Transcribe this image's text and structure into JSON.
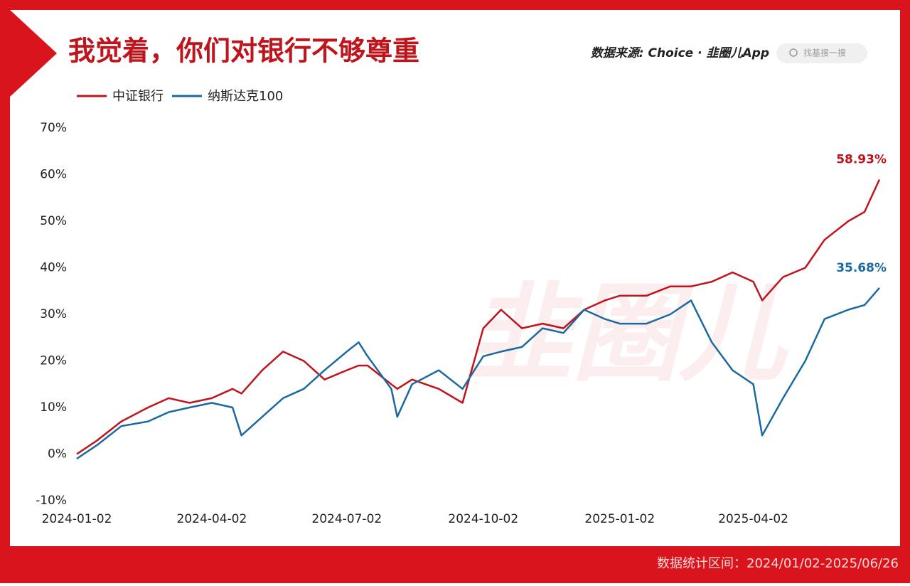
{
  "chart_data": {
    "type": "line",
    "title": "我觉着，你们对银行不够尊重",
    "source": "数据来源: Choice · 韭圈儿App",
    "search": "找基搜一搜",
    "watermark": "韭圈儿",
    "footer": "数据统计区间：2024/01/02-2025/06/26",
    "x": [
      "2024-01-02",
      "2024-01-16",
      "2024-02-01",
      "2024-02-19",
      "2024-03-04",
      "2024-03-18",
      "2024-04-02",
      "2024-04-16",
      "2024-04-22",
      "2024-05-06",
      "2024-05-20",
      "2024-06-03",
      "2024-06-17",
      "2024-07-02",
      "2024-07-10",
      "2024-07-16",
      "2024-08-01",
      "2024-08-05",
      "2024-08-15",
      "2024-09-02",
      "2024-09-18",
      "2024-10-02",
      "2024-10-14",
      "2024-10-28",
      "2024-11-11",
      "2024-11-25",
      "2024-12-09",
      "2024-12-23",
      "2025-01-02",
      "2025-01-20",
      "2025-02-05",
      "2025-02-19",
      "2025-03-05",
      "2025-03-19",
      "2025-04-02",
      "2025-04-08",
      "2025-04-22",
      "2025-05-07",
      "2025-05-20",
      "2025-06-05",
      "2025-06-16",
      "2025-06-26"
    ],
    "series": [
      {
        "name": "中证银行",
        "color": "#c0141c",
        "values": [
          0,
          3,
          7,
          10,
          12,
          11,
          12,
          14,
          13,
          18,
          22,
          20,
          16,
          18,
          19,
          19,
          15,
          14,
          16,
          14,
          11,
          27,
          31,
          27,
          28,
          27,
          31,
          33,
          34,
          34,
          36,
          36,
          37,
          39,
          37,
          33,
          38,
          40,
          46,
          50,
          52,
          58.93
        ],
        "value_labels": [
          null,
          null,
          null,
          null,
          null,
          null,
          null,
          null,
          null,
          null,
          null,
          null,
          null,
          null,
          null,
          null,
          null,
          null,
          null,
          null,
          null,
          null,
          null,
          null,
          null,
          null,
          null,
          null,
          null,
          null,
          null,
          null,
          null,
          null,
          null,
          null,
          null,
          null,
          null,
          null,
          null,
          "58.93%"
        ]
      },
      {
        "name": "纳斯达克100",
        "color": "#1a6aa0",
        "values": [
          -1,
          2,
          6,
          7,
          9,
          10,
          11,
          10,
          4,
          8,
          12,
          14,
          18,
          22,
          24,
          21,
          14,
          8,
          15,
          18,
          14,
          21,
          22,
          23,
          27,
          26,
          31,
          29,
          28,
          28,
          30,
          33,
          24,
          18,
          15,
          4,
          12,
          20,
          29,
          31,
          32,
          35.68
        ],
        "value_labels": [
          null,
          null,
          null,
          null,
          null,
          null,
          null,
          null,
          null,
          null,
          null,
          null,
          null,
          null,
          null,
          null,
          null,
          null,
          null,
          null,
          null,
          null,
          null,
          null,
          null,
          null,
          null,
          null,
          null,
          null,
          null,
          null,
          null,
          null,
          null,
          null,
          null,
          null,
          null,
          null,
          null,
          "35.68%"
        ]
      }
    ],
    "xlim": [
      "2024-01-02",
      "2025-06-26"
    ],
    "xticks": [
      "2024-01-02",
      "2024-04-02",
      "2024-07-02",
      "2024-10-02",
      "2025-01-02",
      "2025-04-02"
    ],
    "ylim": [
      -10,
      70
    ],
    "yticks": [
      {
        "value": -10,
        "label": "-10%"
      },
      {
        "value": 0,
        "label": "0%"
      },
      {
        "value": 10,
        "label": "10%"
      },
      {
        "value": 20,
        "label": "20%"
      },
      {
        "value": 30,
        "label": "30%"
      },
      {
        "value": 40,
        "label": "40%"
      },
      {
        "value": 50,
        "label": "50%"
      },
      {
        "value": 60,
        "label": "60%"
      },
      {
        "value": 70,
        "label": "70%"
      }
    ],
    "grid": false
  }
}
